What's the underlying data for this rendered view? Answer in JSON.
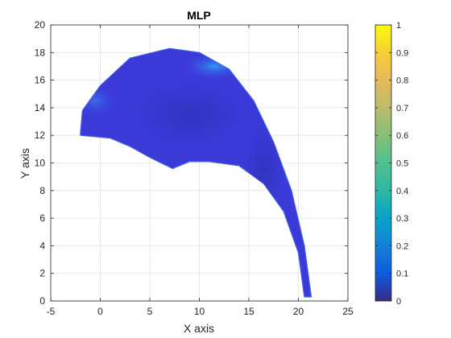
{
  "chart_data": {
    "type": "heatmap",
    "title": "MLP",
    "xlabel": "X axis",
    "ylabel": "Y axis",
    "xlim": [
      -5,
      25
    ],
    "ylim": [
      0,
      20
    ],
    "xticks": [
      "-5",
      "0",
      "5",
      "10",
      "15",
      "20",
      "25"
    ],
    "yticks": [
      "0",
      "2",
      "4",
      "6",
      "8",
      "10",
      "12",
      "14",
      "16",
      "18",
      "20"
    ],
    "grid": true,
    "colormap": "parula",
    "colorbar": {
      "range": [
        0,
        1
      ],
      "ticks": [
        "0",
        "0.1",
        "0.2",
        "0.3",
        "0.4",
        "0.5",
        "0.6",
        "0.7",
        "0.8",
        "0.9",
        "1"
      ],
      "placement": "right"
    },
    "region": {
      "outer_boundary": [
        [
          -2.0,
          12.2
        ],
        [
          -1.8,
          13.8
        ],
        [
          0,
          15.6
        ],
        [
          3,
          17.6
        ],
        [
          7,
          18.3
        ],
        [
          10,
          18.0
        ],
        [
          13,
          16.8
        ],
        [
          15.5,
          14.5
        ],
        [
          17.5,
          11.5
        ],
        [
          19.3,
          8.0
        ],
        [
          20.6,
          4.0
        ],
        [
          21.3,
          0.3
        ]
      ],
      "inner_boundary": [
        [
          20.6,
          0.3
        ],
        [
          20.0,
          3.5
        ],
        [
          18.5,
          6.5
        ],
        [
          16.5,
          8.5
        ],
        [
          14,
          9.8
        ],
        [
          11,
          10.1
        ],
        [
          9,
          10.1
        ],
        [
          7.3,
          9.6
        ],
        [
          5,
          10.4
        ],
        [
          3,
          11.2
        ],
        [
          1,
          11.8
        ],
        [
          -2.0,
          12.0
        ]
      ],
      "typical_value": 0.1,
      "highlights": [
        {
          "x": 11.5,
          "y": 17.0,
          "value": 0.25
        },
        {
          "x": -0.5,
          "y": 14.5,
          "value": 0.2
        }
      ]
    },
    "colors": {
      "region_base": "#3b3ad9",
      "region_light": "#3f5fe6",
      "region_dark": "#3433c4",
      "highlight_high": "#2f88f0",
      "highlight_mid": "#3b6ff0",
      "grid": "#e3e3e3",
      "axis": "#262626"
    }
  }
}
